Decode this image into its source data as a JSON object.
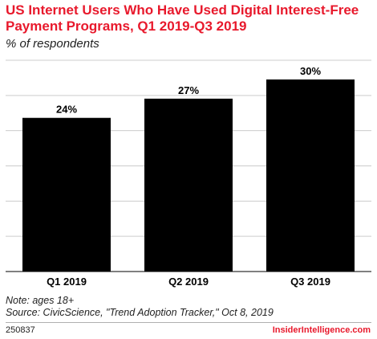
{
  "header": {
    "title": "US Internet Users Who Have Used Digital Interest-Free Payment Programs, Q1 2019-Q3 2019",
    "subtitle": "% of respondents"
  },
  "footer": {
    "note": "Note: ages 18+",
    "source": "Source: CivicScience, \"Trend Adoption Tracker,\" Oct 8, 2019",
    "chart_id": "250837",
    "brand": "InsiderIntelligence.com"
  },
  "colors": {
    "title": "#e8192c",
    "bar": "#000000",
    "grid": "#cccccc",
    "axis": "#000000"
  },
  "chart_data": {
    "type": "bar",
    "title": "US Internet Users Who Have Used Digital Interest-Free Payment Programs, Q1 2019-Q3 2019",
    "subtitle": "% of respondents",
    "categories": [
      "Q1 2019",
      "Q2 2019",
      "Q3 2019"
    ],
    "values": [
      24,
      27,
      30
    ],
    "value_labels": [
      "24%",
      "27%",
      "30%"
    ],
    "xlabel": "",
    "ylabel": "",
    "ylim": [
      0,
      33
    ],
    "grid": true,
    "legend": "none"
  }
}
